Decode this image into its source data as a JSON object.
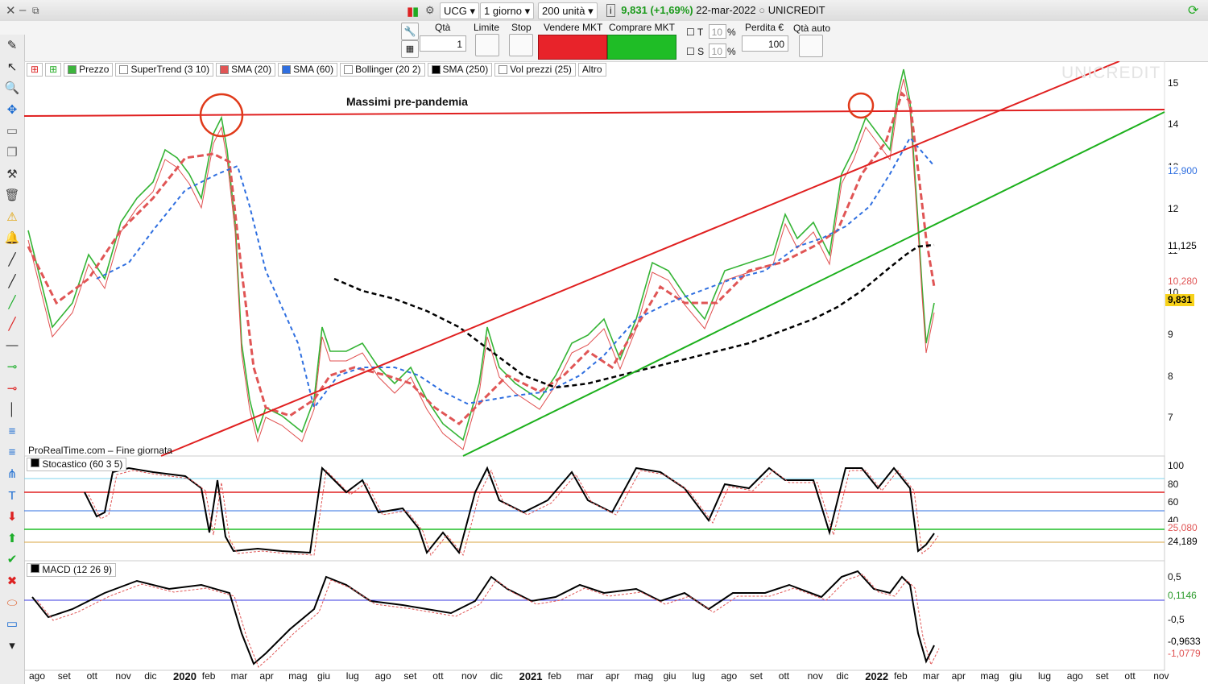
{
  "titlebar": {
    "symbol": "UCG",
    "period": "1 giorno",
    "units": "200 unità",
    "info_icon": "info-icon",
    "last_price": "9,831",
    "change": "(+1,69%)",
    "date": "22-mar-2022",
    "name": "UNICREDIT"
  },
  "order_bar": {
    "qty_label": "Qtà",
    "qty_value": "1",
    "limit_label": "Limite",
    "stop_label": "Stop",
    "sell_label": "Vendere MKT",
    "buy_label": "Comprare MKT",
    "t_label": "T",
    "t_value": "10",
    "s_label": "S",
    "s_value": "10",
    "pct": "%",
    "loss_label": "Perdita €",
    "loss_value": "100",
    "auto_qty_label": "Qtà auto"
  },
  "legend": [
    {
      "label": "Prezzo",
      "color": "#3cb43c"
    },
    {
      "label": "SuperTrend (3 10)",
      "color": "#ffffff"
    },
    {
      "label": "SMA (20)",
      "color": "#e05555"
    },
    {
      "label": "SMA (60)",
      "color": "#2f6fe0"
    },
    {
      "label": "Bollinger (20 2)",
      "color": "#ffffff"
    },
    {
      "label": "SMA (250)",
      "color": "#000000"
    },
    {
      "label": "Vol prezzi (25)",
      "color": "#ffffff"
    },
    {
      "label": "Altro",
      "color": ""
    }
  ],
  "watermark": "UNICREDIT",
  "annotation": "Massimi pre-pandemia",
  "source_note": "ProRealTime.com – Fine giornata",
  "price_axis": {
    "ticks": [
      "15",
      "14",
      "13",
      "12",
      "11",
      "10",
      "9",
      "8",
      "7"
    ],
    "badges": [
      {
        "value": "12,900",
        "color": "#2f6fe0"
      },
      {
        "value": "11,125",
        "color": "#000000"
      },
      {
        "value": "10,280",
        "color": "#e05555"
      },
      {
        "value": "9,831",
        "color": "#000000",
        "bg": "#f7d21a"
      }
    ]
  },
  "stochastic": {
    "label": "Stocastico (60 3 5)",
    "ticks": [
      "100",
      "80",
      "60",
      "40"
    ],
    "badges": [
      {
        "value": "25,080",
        "color": "#e05555"
      },
      {
        "value": "24,189",
        "color": "#000000"
      }
    ]
  },
  "macd": {
    "label": "MACD (12 26 9)",
    "ticks": [
      "0,5",
      "0",
      "-0,5",
      "-1"
    ],
    "badges": [
      {
        "value": "0,1146",
        "color": "#2a9a2a"
      },
      {
        "value": "-0,9633",
        "color": "#000000"
      },
      {
        "value": "-1,0779",
        "color": "#e05555"
      }
    ]
  },
  "months": [
    {
      "label": "ago",
      "year": false
    },
    {
      "label": "set",
      "year": false
    },
    {
      "label": "ott",
      "year": false
    },
    {
      "label": "nov",
      "year": false
    },
    {
      "label": "dic",
      "year": false
    },
    {
      "label": "2020",
      "year": true
    },
    {
      "label": "feb",
      "year": false
    },
    {
      "label": "mar",
      "year": false
    },
    {
      "label": "apr",
      "year": false
    },
    {
      "label": "mag",
      "year": false
    },
    {
      "label": "giu",
      "year": false
    },
    {
      "label": "lug",
      "year": false
    },
    {
      "label": "ago",
      "year": false
    },
    {
      "label": "set",
      "year": false
    },
    {
      "label": "ott",
      "year": false
    },
    {
      "label": "nov",
      "year": false
    },
    {
      "label": "dic",
      "year": false
    },
    {
      "label": "2021",
      "year": true
    },
    {
      "label": "feb",
      "year": false
    },
    {
      "label": "mar",
      "year": false
    },
    {
      "label": "apr",
      "year": false
    },
    {
      "label": "mag",
      "year": false
    },
    {
      "label": "giu",
      "year": false
    },
    {
      "label": "lug",
      "year": false
    },
    {
      "label": "ago",
      "year": false
    },
    {
      "label": "set",
      "year": false
    },
    {
      "label": "ott",
      "year": false
    },
    {
      "label": "nov",
      "year": false
    },
    {
      "label": "dic",
      "year": false
    },
    {
      "label": "2022",
      "year": true
    },
    {
      "label": "feb",
      "year": false
    },
    {
      "label": "mar",
      "year": false
    },
    {
      "label": "apr",
      "year": false
    },
    {
      "label": "mag",
      "year": false
    },
    {
      "label": "giu",
      "year": false
    },
    {
      "label": "lug",
      "year": false
    },
    {
      "label": "ago",
      "year": false
    },
    {
      "label": "set",
      "year": false
    },
    {
      "label": "ott",
      "year": false
    },
    {
      "label": "nov",
      "year": false
    }
  ],
  "sidebar_tools": [
    "pencil-icon",
    "cursor-icon",
    "zoom-icon",
    "move-icon",
    "ruler-icon",
    "copy-icon",
    "hammer-icon",
    "trash-icon",
    "alert-bell-icon",
    "alarm-icon",
    "segment-icon",
    "line-icon",
    "green-line-icon",
    "red-line-icon",
    "horizontal-line-icon",
    "green-ray-icon",
    "red-ray-icon",
    "vertical-line-icon",
    "fibonacci-icon",
    "fib-fan-icon",
    "pitchfork-icon",
    "text-icon",
    "down-arrow-icon",
    "up-arrow-icon",
    "check-icon",
    "cross-icon",
    "ellipse-icon",
    "rectangle-icon",
    "more-down-icon"
  ]
}
